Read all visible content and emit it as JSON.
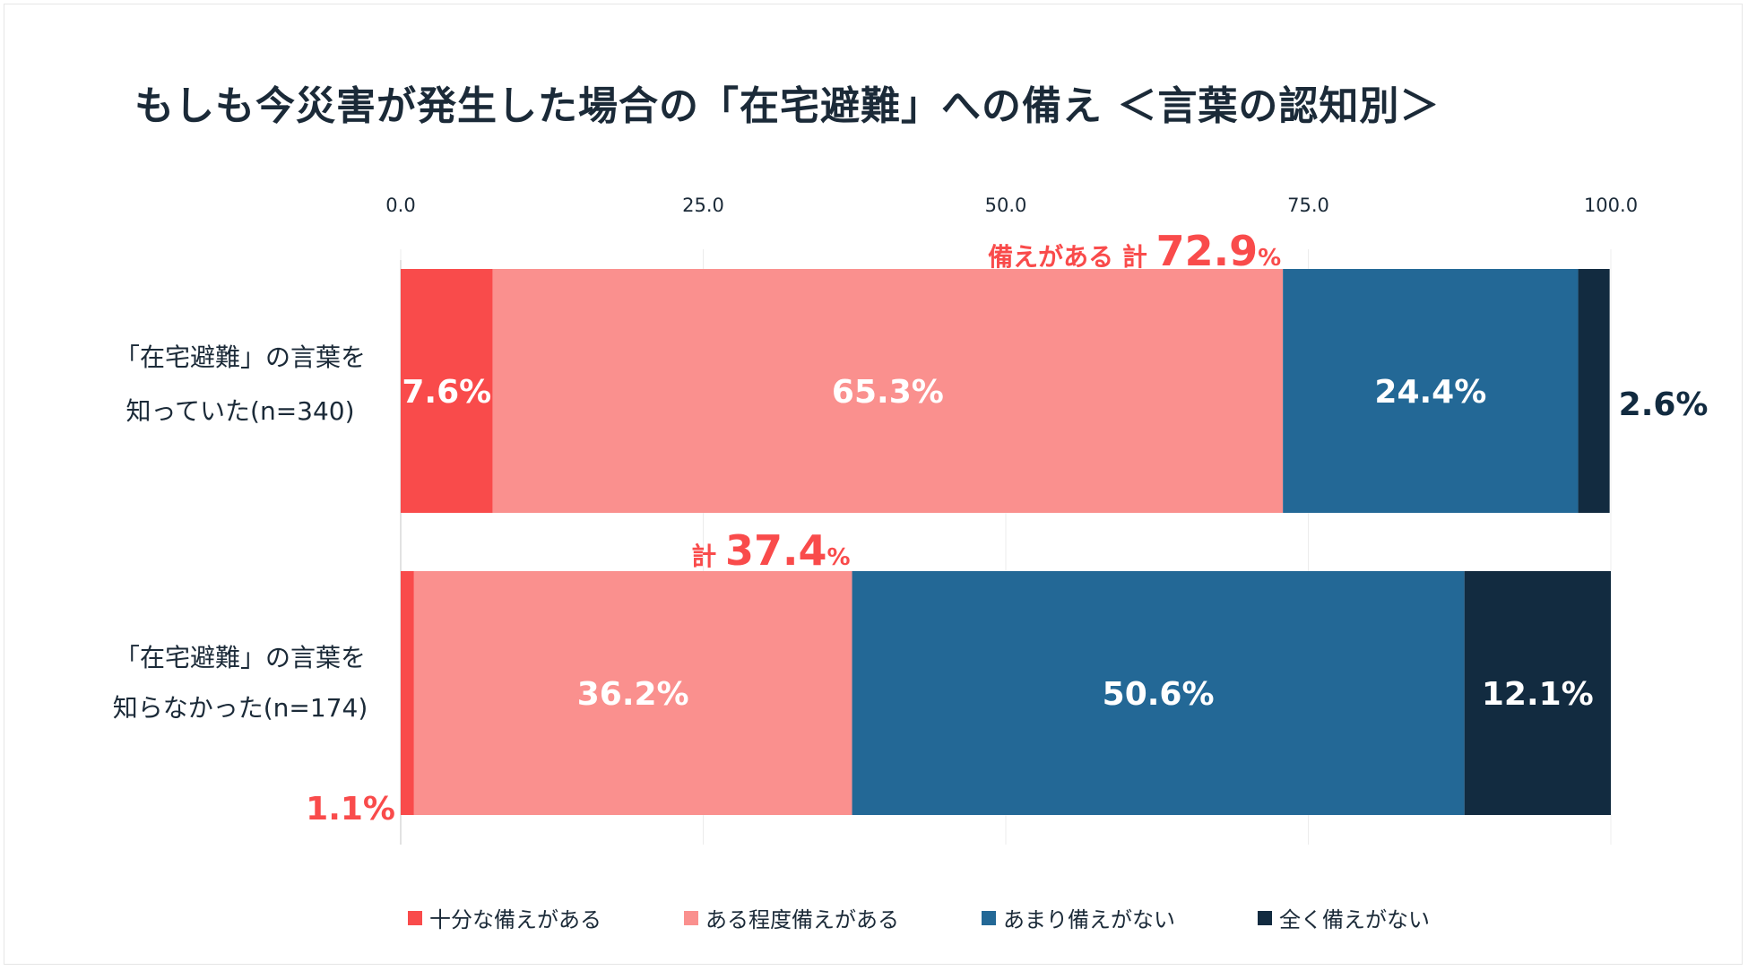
{
  "title": "もしも今災害が発生した場合の「在宅避難」への備え ＜言葉の認知別＞",
  "chart_data": {
    "type": "bar",
    "orientation": "horizontal",
    "stacked": true,
    "xlim": [
      0,
      100
    ],
    "ticks": [
      "0.0",
      "25.0",
      "50.0",
      "75.0",
      "100.0"
    ],
    "tick_values": [
      0,
      25,
      50,
      75,
      100
    ],
    "categories": [
      {
        "line1": "「在宅避難」の言葉を",
        "line2": "知っていた(n=340)"
      },
      {
        "line1": "「在宅避難」の言葉を",
        "line2": "知らなかった(n=174)"
      }
    ],
    "series": [
      {
        "name": "十分な備えがある",
        "color": "#f94b4b",
        "values": [
          7.6,
          1.1
        ],
        "labels": [
          "7.6%",
          "1.1%"
        ]
      },
      {
        "name": "ある程度備えがある",
        "color": "#fa908e",
        "values": [
          65.3,
          36.2
        ],
        "labels": [
          "65.3%",
          "36.2%"
        ]
      },
      {
        "name": "あまり備えがない",
        "color": "#236896",
        "values": [
          24.4,
          50.6
        ],
        "labels": [
          "24.4%",
          "50.6%"
        ]
      },
      {
        "name": "全く備えがない",
        "color": "#122b40",
        "values": [
          2.6,
          12.1
        ],
        "labels": [
          "2.6%",
          "12.1%"
        ]
      }
    ],
    "annotations": [
      {
        "prefix": "備えがある 計 ",
        "value": "72.9",
        "unit": "%"
      },
      {
        "prefix": "計 ",
        "value": "37.4",
        "unit": "%"
      }
    ]
  }
}
